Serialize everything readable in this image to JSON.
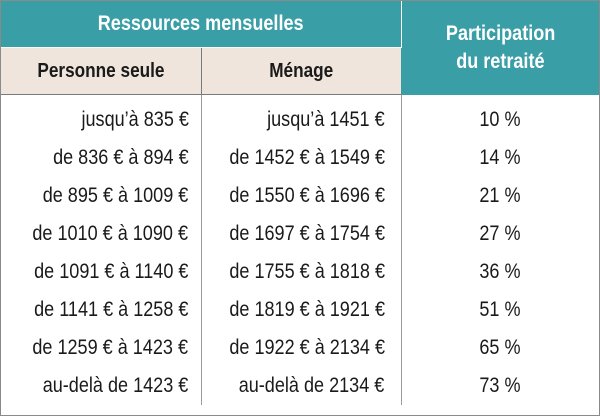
{
  "table": {
    "group_header": "Ressources mensuelles",
    "participation_header_line1": "Participation",
    "participation_header_line2": "du retraité",
    "col_personne_seule": "Personne seule",
    "col_menage": "Ménage",
    "rows": [
      {
        "personne_seule": "jusqu’à 835 €",
        "menage": "jusqu’à 1451 €",
        "participation": "10 %"
      },
      {
        "personne_seule": "de 836 € à 894 €",
        "menage": "de 1452 € à 1549 €",
        "participation": "14 %"
      },
      {
        "personne_seule": "de 895 € à 1009 €",
        "menage": "de 1550 € à 1696 €",
        "participation": "21 %"
      },
      {
        "personne_seule": "de 1010 € à 1090 €",
        "menage": "de 1697 € à 1754 €",
        "participation": "27 %"
      },
      {
        "personne_seule": "de 1091 € à 1140 €",
        "menage": "de 1755 € à 1818 €",
        "participation": "36 %"
      },
      {
        "personne_seule": "de 1141 € à 1258 €",
        "menage": "de 1819 € à 1921 €",
        "participation": "51 %"
      },
      {
        "personne_seule": "de 1259 € à 1423 €",
        "menage": "de 1922 € à 2134 €",
        "participation": "65 %"
      },
      {
        "personne_seule": "au-delà de 1423 €",
        "menage": "au-delà de 2134 €",
        "participation": "73 %"
      }
    ]
  },
  "colors": {
    "header_teal": "#3a9ea6",
    "subheader_beige": "#efe5dc",
    "text": "#1a1a1a"
  }
}
